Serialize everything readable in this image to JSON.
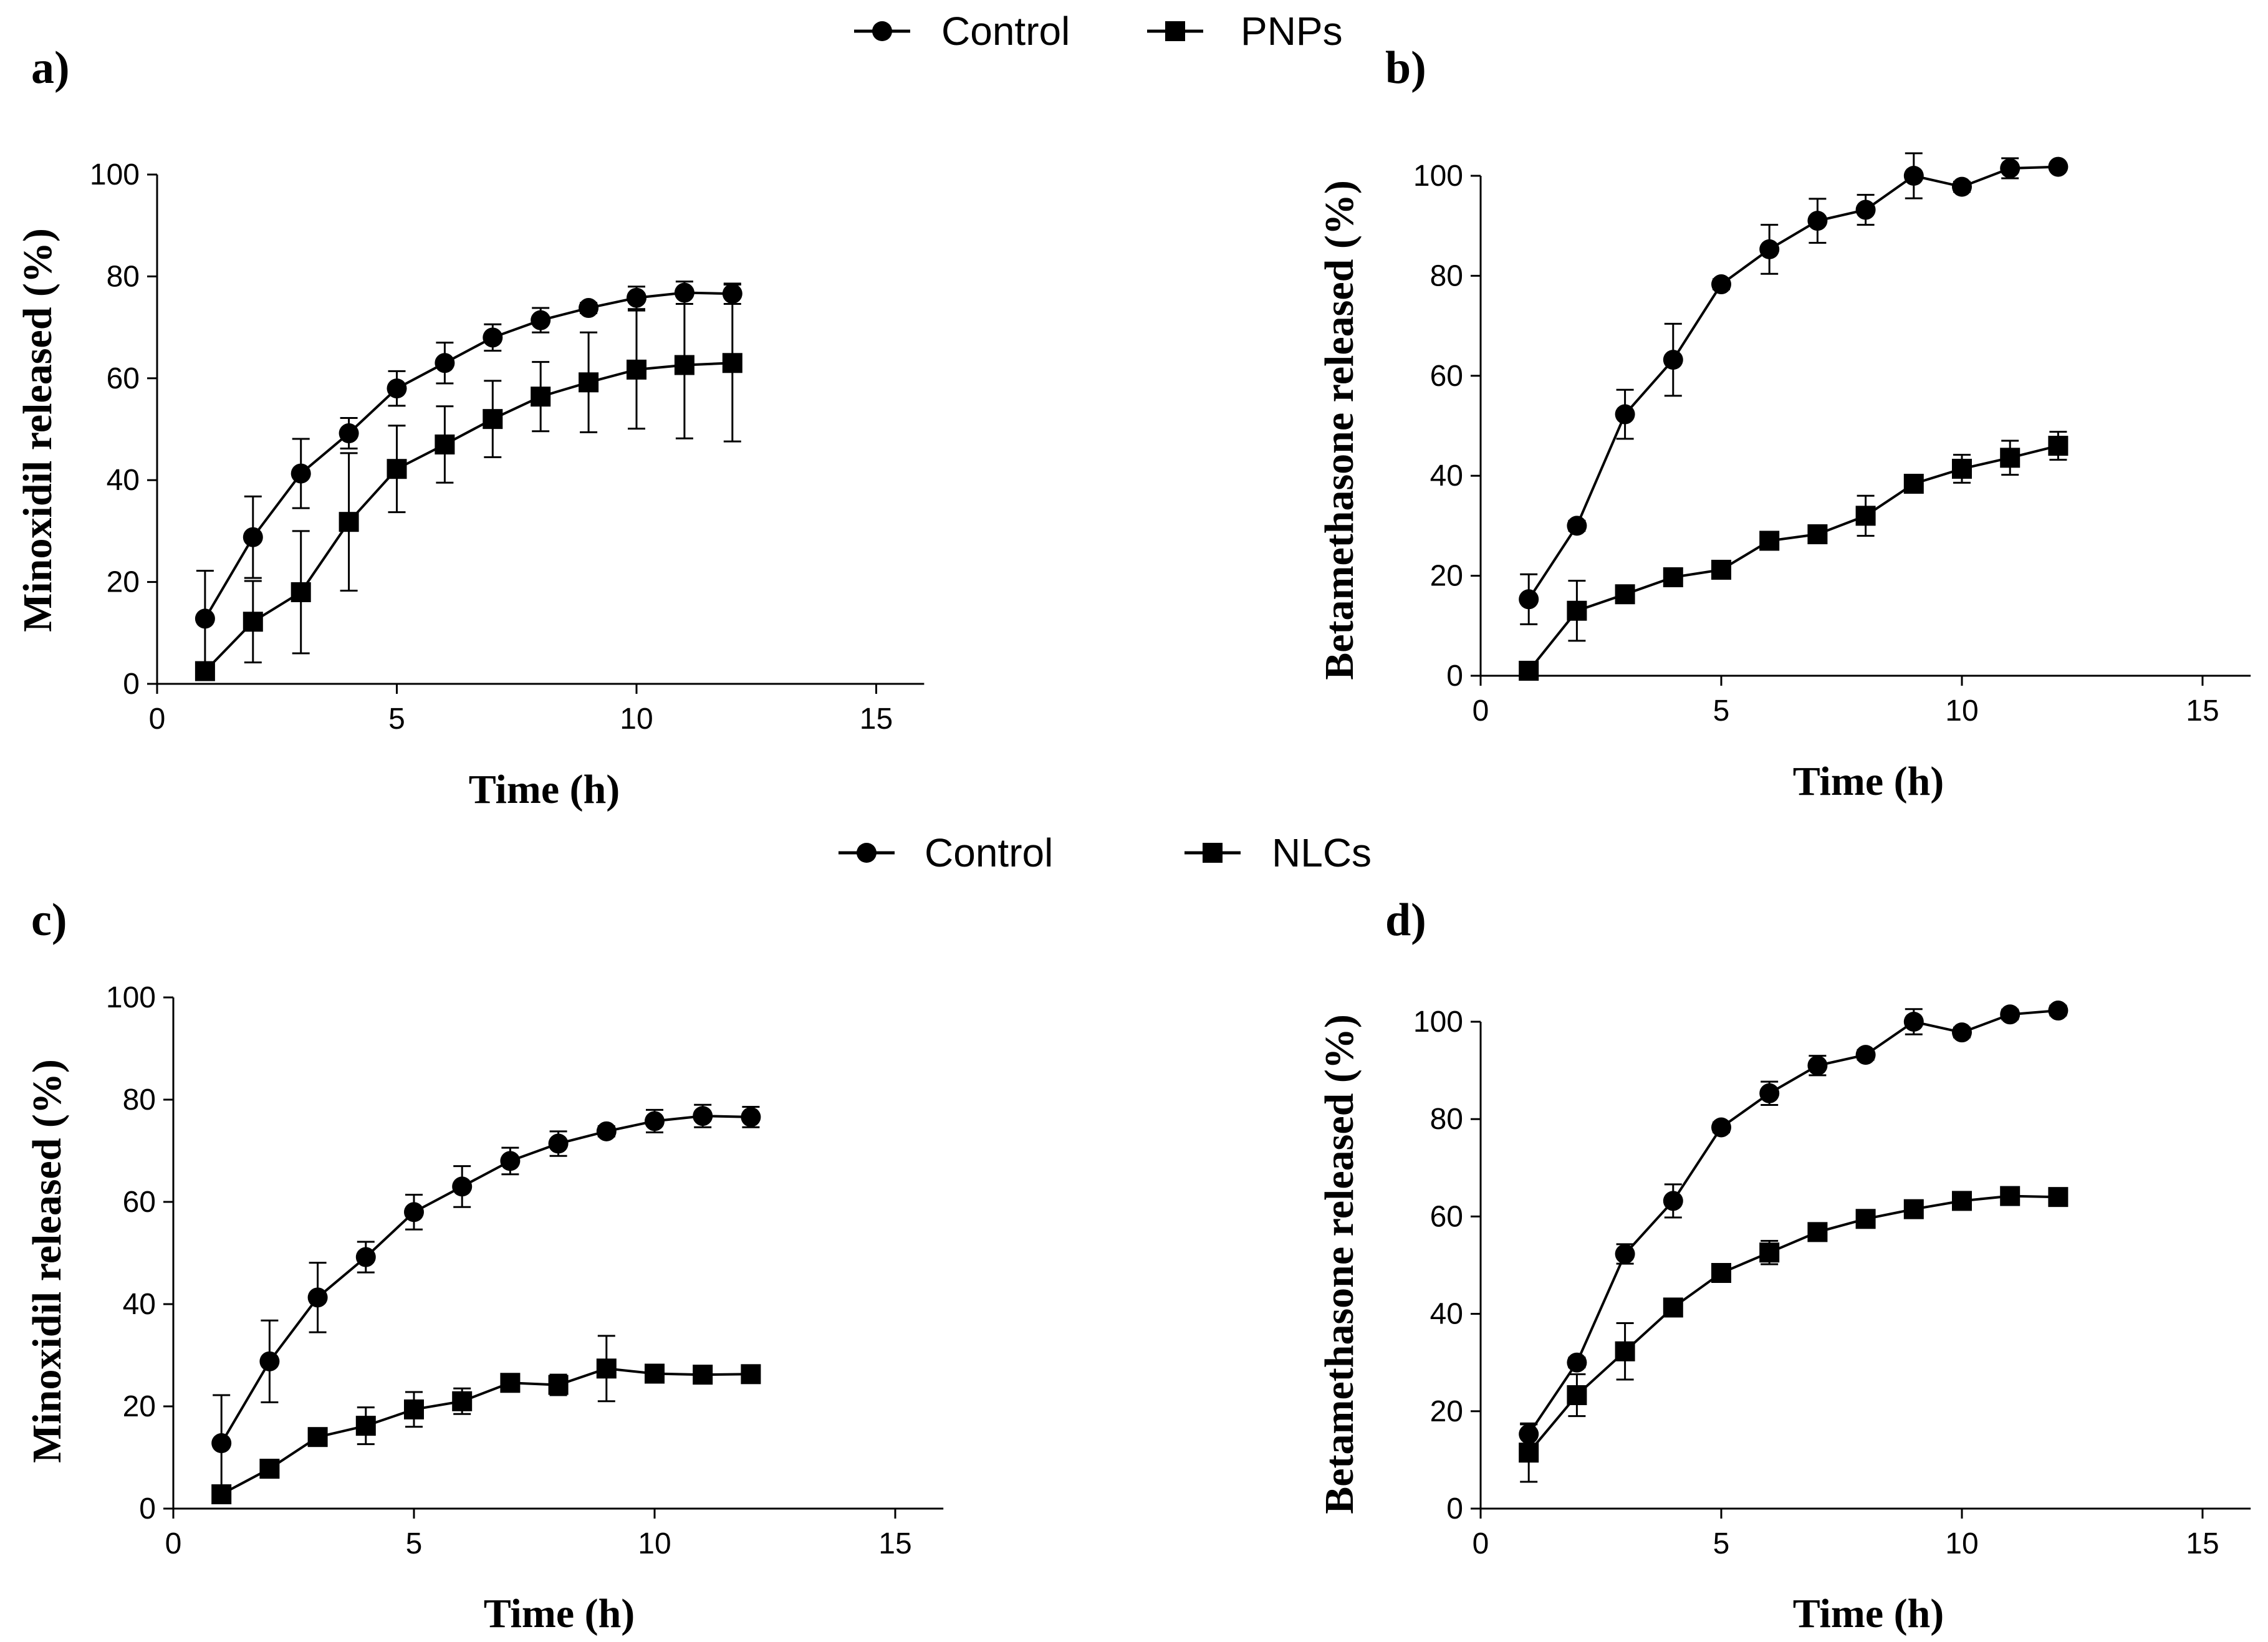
{
  "legends": [
    {
      "entries": [
        {
          "label": "Control",
          "marker": "circle"
        },
        {
          "label": "PNPs",
          "marker": "square"
        }
      ]
    },
    {
      "entries": [
        {
          "label": "Control",
          "marker": "circle"
        },
        {
          "label": "NLCs",
          "marker": "square"
        }
      ]
    }
  ],
  "colors": {
    "ink": "#000000",
    "background": "#ffffff"
  },
  "chart_data": [
    {
      "type": "line",
      "panel_label": "a)",
      "xlabel": "Time (h)",
      "ylabel": "Minoxidil released (%)",
      "xlim": [
        0,
        16
      ],
      "ylim": [
        0,
        100
      ],
      "xticks": [
        "0",
        "5",
        "10",
        "15"
      ],
      "yticks": [
        "0",
        "20",
        "40",
        "60",
        "80",
        "100"
      ],
      "x": [
        1,
        2,
        3,
        4,
        5,
        6,
        7,
        8,
        9,
        10,
        11,
        12
      ],
      "series": [
        {
          "name": "Control",
          "marker": "circle",
          "values": [
            12.8,
            28.8,
            41.3,
            49.2,
            58.0,
            63.0,
            68.0,
            71.4,
            73.8,
            75.8,
            76.8,
            76.6
          ],
          "errors": [
            9.4,
            8.0,
            6.8,
            3.0,
            3.4,
            4.0,
            2.6,
            2.4,
            1.0,
            2.2,
            2.2,
            2.0
          ]
        },
        {
          "name": "PNPs",
          "marker": "square",
          "values": [
            2.5,
            12.2,
            18.0,
            31.8,
            42.2,
            47.0,
            52.0,
            56.4,
            59.2,
            61.7,
            62.6,
            63.0
          ],
          "errors": [
            1.5,
            8.0,
            12.0,
            13.5,
            8.5,
            7.5,
            7.5,
            6.8,
            9.8,
            11.6,
            14.4,
            15.4
          ]
        }
      ]
    },
    {
      "type": "line",
      "panel_label": "b)",
      "xlabel": "Time (h)",
      "ylabel": "Betamethasone released (%)",
      "xlim": [
        0,
        16
      ],
      "ylim": [
        0,
        100
      ],
      "xticks": [
        "0",
        "5",
        "10",
        "15"
      ],
      "yticks": [
        "0",
        "20",
        "40",
        "60",
        "80",
        "100"
      ],
      "x": [
        1,
        2,
        3,
        4,
        5,
        6,
        7,
        8,
        9,
        10,
        11,
        12
      ],
      "series": [
        {
          "name": "Control",
          "marker": "circle",
          "values": [
            15.3,
            30.0,
            52.3,
            63.2,
            78.3,
            85.3,
            91.0,
            93.2,
            100.0,
            97.8,
            101.5,
            101.8
          ],
          "errors": [
            5.0,
            1.0,
            4.9,
            7.2,
            1.0,
            4.9,
            4.4,
            3.0,
            4.5,
            1.0,
            2.0,
            0.3
          ]
        },
        {
          "name": "PNPs",
          "marker": "square",
          "values": [
            1.0,
            13.0,
            16.3,
            19.7,
            21.2,
            27.0,
            28.3,
            32.0,
            38.4,
            41.4,
            43.6,
            46.0
          ],
          "errors": [
            1.0,
            6.0,
            1.0,
            1.0,
            1.0,
            1.0,
            1.0,
            4.0,
            1.0,
            2.8,
            3.4,
            2.8
          ]
        }
      ]
    },
    {
      "type": "line",
      "panel_label": "c)",
      "xlabel": "Time (h)",
      "ylabel": "Minoxidil released (%)",
      "xlim": [
        0,
        16
      ],
      "ylim": [
        0,
        100
      ],
      "xticks": [
        "0",
        "5",
        "10",
        "15"
      ],
      "yticks": [
        "0",
        "20",
        "40",
        "60",
        "80",
        "100"
      ],
      "x": [
        1,
        2,
        3,
        4,
        5,
        6,
        7,
        8,
        9,
        10,
        11,
        12
      ],
      "series": [
        {
          "name": "Control",
          "marker": "circle",
          "values": [
            12.8,
            28.8,
            41.3,
            49.2,
            58.0,
            63.0,
            68.0,
            71.4,
            73.8,
            75.8,
            76.8,
            76.6
          ],
          "errors": [
            9.4,
            8.0,
            6.8,
            3.0,
            3.4,
            4.0,
            2.6,
            2.4,
            1.0,
            2.2,
            2.2,
            2.0
          ]
        },
        {
          "name": "NLCs",
          "marker": "square",
          "values": [
            2.8,
            7.8,
            14.0,
            16.2,
            19.4,
            21.0,
            24.6,
            24.2,
            27.4,
            26.4,
            26.2,
            26.3
          ],
          "errors": [
            1.0,
            1.0,
            1.0,
            3.6,
            3.4,
            2.5,
            1.0,
            2.0,
            6.4,
            1.0,
            1.0,
            1.0
          ]
        }
      ]
    },
    {
      "type": "line",
      "panel_label": "d)",
      "xlabel": "Time (h)",
      "ylabel": "Betamethasone released (%)",
      "xlim": [
        0,
        16
      ],
      "ylim": [
        0,
        100
      ],
      "xticks": [
        "0",
        "5",
        "10",
        "15"
      ],
      "yticks": [
        "0",
        "20",
        "40",
        "60",
        "80",
        "100"
      ],
      "x": [
        1,
        2,
        3,
        4,
        5,
        6,
        7,
        8,
        9,
        10,
        11,
        12
      ],
      "series": [
        {
          "name": "Control",
          "marker": "circle",
          "values": [
            15.3,
            30.0,
            52.3,
            63.2,
            78.3,
            85.3,
            91.0,
            93.2,
            100.0,
            97.8,
            101.5,
            102.3
          ],
          "errors": [
            2.0,
            1.0,
            2.0,
            3.4,
            1.0,
            2.4,
            2.0,
            1.0,
            2.6,
            1.0,
            1.0,
            1.0
          ]
        },
        {
          "name": "NLCs",
          "marker": "square",
          "values": [
            11.5,
            23.3,
            32.3,
            41.3,
            48.4,
            52.6,
            56.8,
            59.5,
            61.5,
            63.2,
            64.2,
            64.0
          ],
          "errors": [
            6.0,
            4.3,
            5.8,
            1.0,
            1.0,
            2.4,
            1.0,
            1.0,
            1.0,
            1.0,
            1.0,
            1.0
          ]
        }
      ]
    }
  ]
}
